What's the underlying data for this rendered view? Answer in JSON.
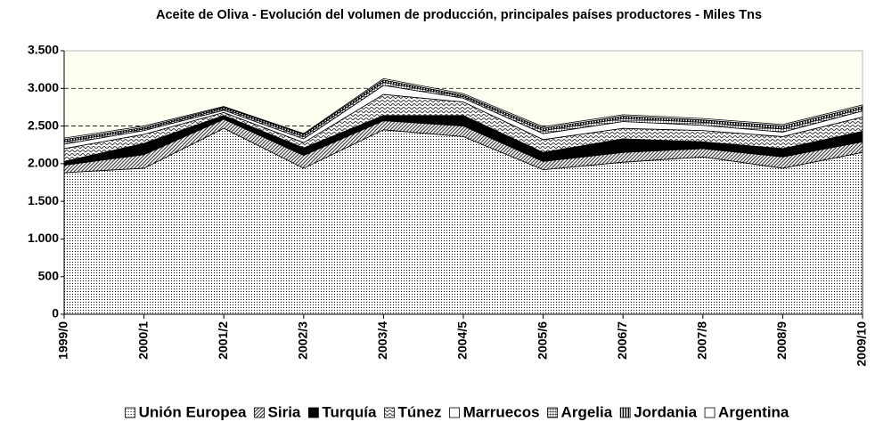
{
  "chart_data": {
    "type": "stacked_area",
    "title": "Aceite de Oliva - Evolución del volumen de producción, principales países productores - Miles Tns",
    "categories": [
      "1999/0",
      "2000/1",
      "2001/2",
      "2002/3",
      "2003/4",
      "2004/5",
      "2005/6",
      "2006/7",
      "2007/8",
      "2008/9",
      "2009/10"
    ],
    "series": [
      {
        "name": "Unión Europea",
        "color": "#000000",
        "pattern": "dots",
        "values": [
          1880,
          1940,
          2470,
          1940,
          2450,
          2360,
          1920,
          2020,
          2090,
          1940,
          2150
        ]
      },
      {
        "name": "Siria",
        "color": "#555555",
        "pattern": "diagonal",
        "values": [
          100,
          180,
          120,
          170,
          120,
          140,
          110,
          130,
          110,
          150,
          140
        ]
      },
      {
        "name": "Turquía",
        "color": "#000000",
        "pattern": "solid",
        "values": [
          50,
          150,
          50,
          100,
          70,
          140,
          120,
          180,
          90,
          110,
          140
        ]
      },
      {
        "name": "Túnez",
        "color": "#555555",
        "pattern": "zigzag",
        "values": [
          170,
          120,
          40,
          70,
          280,
          180,
          170,
          140,
          150,
          160,
          190
        ]
      },
      {
        "name": "Marruecos",
        "color": "#ffffff",
        "pattern": "none",
        "values": [
          60,
          50,
          30,
          50,
          120,
          50,
          80,
          90,
          70,
          60,
          80
        ]
      },
      {
        "name": "Argelia",
        "color": "#333333",
        "pattern": "grid",
        "values": [
          30,
          20,
          20,
          30,
          40,
          20,
          40,
          40,
          40,
          40,
          30
        ]
      },
      {
        "name": "Jordania",
        "color": "#000000",
        "pattern": "vertical",
        "values": [
          30,
          20,
          20,
          30,
          30,
          20,
          30,
          30,
          30,
          40,
          30
        ]
      },
      {
        "name": "Argentina",
        "color": "#ffffff",
        "pattern": "none",
        "values": [
          20,
          20,
          10,
          10,
          20,
          20,
          20,
          20,
          20,
          20,
          20
        ]
      }
    ],
    "ylim": [
      0,
      3500
    ],
    "yticks": [
      0,
      500,
      {
        "value": 1000,
        "label": "1.000"
      },
      {
        "value": 1500,
        "label": "1.500"
      },
      {
        "value": 2000,
        "label": "2.000"
      },
      {
        "value": 2500,
        "label": "2.500"
      },
      {
        "value": 3000,
        "label": "3.000"
      },
      {
        "value": 3500,
        "label": "3.500"
      }
    ],
    "grid": true,
    "legend": "bottom"
  }
}
